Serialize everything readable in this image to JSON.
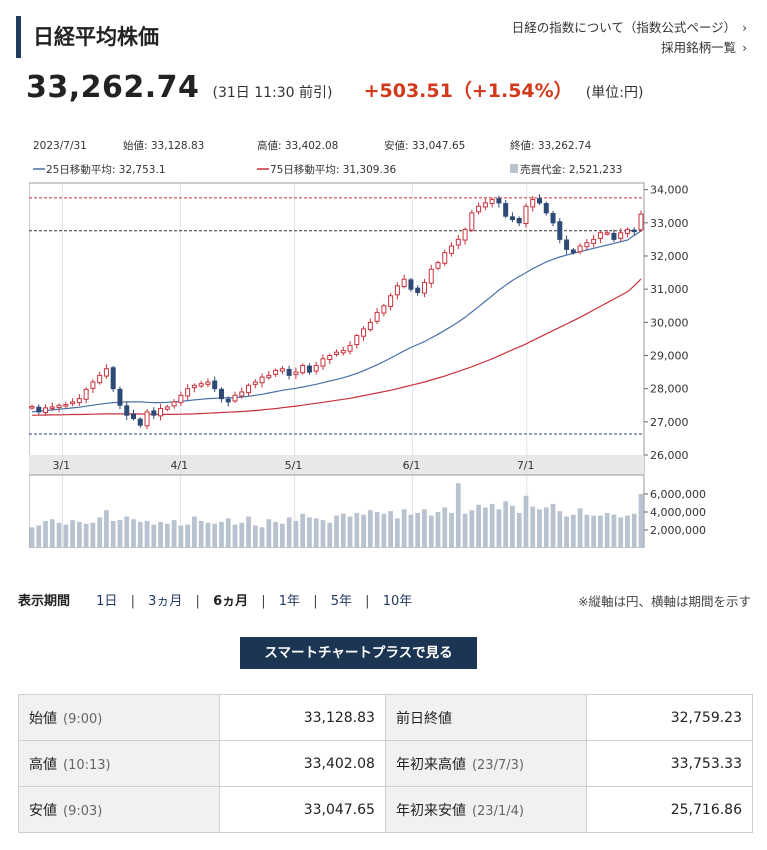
{
  "header": {
    "title": "日経平均株価",
    "link_about": "日経の指数について（指数公式ページ）",
    "link_constituents": "採用銘柄一覧"
  },
  "quote": {
    "price": "33,262.74",
    "asof": "(31日 11:30 前引)",
    "change": "+503.51（+1.54%）",
    "unit": "(単位:円)"
  },
  "chart_info": {
    "date": "2023/7/31",
    "open": "始値: 33,128.83",
    "high": "高値: 33,402.08",
    "low": "安値: 33,047.65",
    "close": "終値: 33,262.74",
    "ma25": "25日移動平均: 32,753.1",
    "ma75": "75日移動平均: 31,309.36",
    "turnover": "売買代金: 2,521,233"
  },
  "colors": {
    "up": "#c8323c",
    "down": "#2d4a74",
    "ma25": "#4a6fa5",
    "ma75": "#c8323c",
    "volume": "#b8c3cf",
    "accent": "#1b3552"
  },
  "chart_data": {
    "type": "candlestick",
    "x_range": [
      "2023-02-21",
      "2023-07-31"
    ],
    "ylim": [
      26000,
      34200
    ],
    "y_ticks": [
      "34,000",
      "33,000",
      "32,000",
      "31,000",
      "30,000",
      "29,000",
      "28,000",
      "27,000",
      "26,000"
    ],
    "x_ticks": [
      {
        "label": "3/1",
        "date": "2023-03-01"
      },
      {
        "label": "4/1",
        "date": "2023-04-01"
      },
      {
        "label": "5/1",
        "date": "2023-05-01"
      },
      {
        "label": "6/1",
        "date": "2023-06-01"
      },
      {
        "label": "7/1",
        "date": "2023-07-01"
      }
    ],
    "reference_lines": [
      {
        "value": 33753.33,
        "style": "dashed",
        "color": "#c8323c"
      },
      {
        "value": 32759.23,
        "style": "dashed",
        "color": "#333333"
      },
      {
        "value": 26632,
        "style": "dashed",
        "color": "#2d4a74"
      }
    ],
    "close": [
      27460,
      27300,
      27420,
      27450,
      27500,
      27520,
      27600,
      27700,
      27980,
      28200,
      28400,
      28600,
      28000,
      27500,
      27200,
      27100,
      26900,
      27300,
      27200,
      27400,
      27450,
      27600,
      27800,
      28000,
      28100,
      28150,
      28200,
      28000,
      27700,
      27600,
      27800,
      27900,
      28100,
      28200,
      28350,
      28400,
      28550,
      28600,
      28400,
      28500,
      28700,
      28500,
      28700,
      28900,
      29000,
      29100,
      29150,
      29300,
      29600,
      29800,
      30000,
      30300,
      30500,
      30800,
      31100,
      31300,
      31000,
      30900,
      31200,
      31600,
      31800,
      32100,
      32300,
      32500,
      32800,
      33300,
      33500,
      33600,
      33700,
      33600,
      33200,
      33100,
      33000,
      33500,
      33700,
      33600,
      33300,
      33000,
      32500,
      32200,
      32100,
      32300,
      32400,
      32500,
      32700,
      32700,
      32500,
      32700,
      32800,
      32760,
      33262
    ],
    "ma25": [
      27300,
      27320,
      27340,
      27360,
      27380,
      27400,
      27420,
      27440,
      27470,
      27500,
      27530,
      27560,
      27580,
      27590,
      27600,
      27600,
      27600,
      27590,
      27580,
      27580,
      27590,
      27600,
      27620,
      27640,
      27660,
      27680,
      27700,
      27710,
      27720,
      27720,
      27730,
      27750,
      27770,
      27800,
      27830,
      27870,
      27910,
      27950,
      27980,
      28010,
      28050,
      28090,
      28130,
      28180,
      28230,
      28280,
      28330,
      28390,
      28460,
      28540,
      28630,
      28720,
      28820,
      28920,
      29030,
      29140,
      29240,
      29330,
      29420,
      29530,
      29640,
      29760,
      29880,
      30010,
      30150,
      30310,
      30470,
      30640,
      30800,
      30970,
      31120,
      31260,
      31380,
      31500,
      31620,
      31720,
      31820,
      31900,
      31970,
      32030,
      32080,
      32130,
      32180,
      32230,
      32280,
      32330,
      32380,
      32430,
      32480,
      32620,
      32753
    ],
    "ma75": [
      27200,
      27200,
      27205,
      27210,
      27210,
      27215,
      27220,
      27220,
      27225,
      27230,
      27235,
      27240,
      27240,
      27240,
      27240,
      27240,
      27235,
      27230,
      27230,
      27225,
      27225,
      27225,
      27230,
      27235,
      27240,
      27250,
      27260,
      27270,
      27280,
      27290,
      27300,
      27310,
      27325,
      27340,
      27360,
      27380,
      27400,
      27425,
      27450,
      27475,
      27500,
      27530,
      27560,
      27590,
      27620,
      27650,
      27680,
      27710,
      27750,
      27790,
      27830,
      27870,
      27910,
      27950,
      28000,
      28050,
      28100,
      28150,
      28200,
      28260,
      28320,
      28380,
      28450,
      28520,
      28590,
      28660,
      28740,
      28820,
      28900,
      28990,
      29080,
      29170,
      29260,
      29350,
      29450,
      29550,
      29650,
      29750,
      29850,
      29950,
      30050,
      30150,
      30260,
      30370,
      30480,
      30590,
      30700,
      30810,
      30920,
      31100,
      31309
    ],
    "volume": {
      "ticks": [
        "6,000,000",
        "4,000,000",
        "2,000,000"
      ],
      "ylim": [
        0,
        7000000
      ],
      "values": [
        2300000,
        2500000,
        3000000,
        3200000,
        2800000,
        2600000,
        3100000,
        2900000,
        2700000,
        2800000,
        3400000,
        4200000,
        3000000,
        3100000,
        3500000,
        3200000,
        2900000,
        3000000,
        2600000,
        2900000,
        2700000,
        3100000,
        2500000,
        2600000,
        3500000,
        3000000,
        2800000,
        2700000,
        2900000,
        3300000,
        2600000,
        2800000,
        3500000,
        2500000,
        2300000,
        3200000,
        2900000,
        2700000,
        3400000,
        3000000,
        3800000,
        3400000,
        3300000,
        3100000,
        2800000,
        3600000,
        3800000,
        3500000,
        3900000,
        3700000,
        4200000,
        4000000,
        3800000,
        4100000,
        3300000,
        4300000,
        3700000,
        3900000,
        4300000,
        3600000,
        4000000,
        4500000,
        3900000,
        7200000,
        3800000,
        4200000,
        4800000,
        4500000,
        4900000,
        4300000,
        5200000,
        4700000,
        3900000,
        5800000,
        4600000,
        4300000,
        4500000,
        4900000,
        4100000,
        3500000,
        3700000,
        4400000,
        3700000,
        3600000,
        3600000,
        3900000,
        3700000,
        3400000,
        3600000,
        3800000,
        6000000
      ]
    }
  },
  "period": {
    "label": "表示期間",
    "options": [
      "1日",
      "3ヵ月",
      "6ヵ月",
      "1年",
      "5年",
      "10年"
    ],
    "active": "6ヵ月",
    "note": "※縦軸は円、横軸は期間を示す"
  },
  "smart_chart_button": "スマートチャートプラスで見る",
  "summary": {
    "open": {
      "label": "始値",
      "time": "(9:00)",
      "value": "33,128.83"
    },
    "high": {
      "label": "高値",
      "time": "(10:13)",
      "value": "33,402.08"
    },
    "low": {
      "label": "安値",
      "time": "(9:03)",
      "value": "33,047.65"
    },
    "prev_close": {
      "label": "前日終値",
      "value": "32,759.23"
    },
    "ytd_high": {
      "label": "年初来高値",
      "time": "(23/7/3)",
      "value": "33,753.33"
    },
    "ytd_low": {
      "label": "年初来安値",
      "time": "(23/1/4)",
      "value": "25,716.86"
    }
  }
}
